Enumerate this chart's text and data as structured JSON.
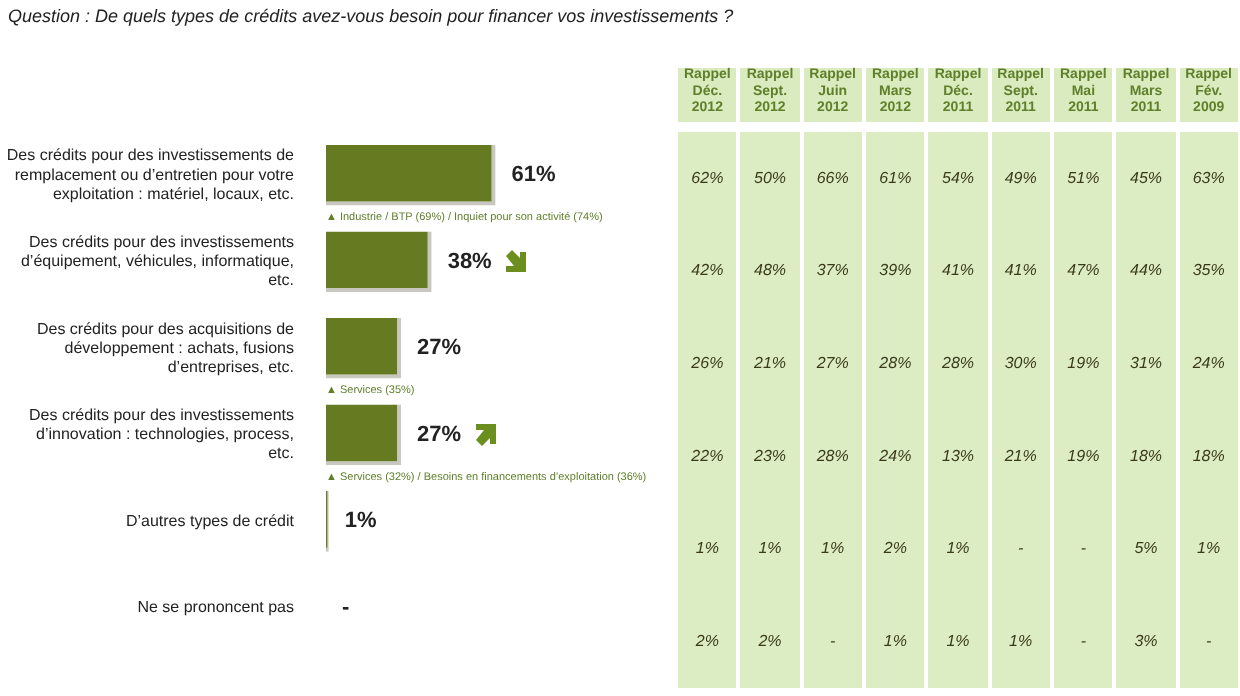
{
  "chart_data": [
    {
      "type": "bar",
      "orientation": "horizontal",
      "title": "Question : De quels types de crédits avez-vous besoin pour financer vos investissements ?",
      "categories": [
        "Des crédits pour des investissements de remplacement ou d’entretien pour votre exploitation : matériel, locaux, etc.",
        "Des crédits pour des investissements d’équipement, véhicules, informatique, etc.",
        "Des crédits pour des acquisitions de développement : achats, fusions d’entreprises, etc.",
        "Des crédits pour des investissements d’innovation : technologies, process, etc.",
        "D’autres types de crédit",
        "Ne se prononcent pas"
      ],
      "series": [
        {
          "type": "bar",
          "color": "#667a22",
          "values": [
            61,
            38,
            27,
            27,
            1,
            null
          ],
          "value_labels": [
            "61%",
            "38%",
            "27%",
            "27%",
            "1%",
            "-"
          ]
        }
      ],
      "annotations": [
        "▲ Industrie / BTP (69%) / Inquiet pour son activité (74%)",
        "▲ Services (35%)",
        "▲ Services (32%) / Besoins en financements d’exploitation (36%)"
      ],
      "grid": false,
      "legend": false
    },
    {
      "type": "heatmap",
      "categories": [
        "Rappel Déc. 2012",
        "Rappel Sept. 2012",
        "Rappel Juin 2012",
        "Rappel Mars 2012",
        "Rappel Déc. 2011",
        "Rappel Sept. 2011",
        "Rappel Mai 2011",
        "Rappel Mars 2011",
        "Rappel Fév. 2009"
      ],
      "y_categories": [
        null,
        null,
        null,
        null,
        null,
        null
      ],
      "cells": [
        [
          62,
          50,
          66,
          61,
          54,
          49,
          51,
          45,
          63
        ],
        [
          42,
          48,
          37,
          39,
          41,
          41,
          47,
          44,
          35
        ],
        [
          26,
          21,
          27,
          28,
          28,
          30,
          19,
          31,
          24
        ],
        [
          22,
          23,
          28,
          24,
          13,
          21,
          19,
          18,
          18
        ],
        [
          1,
          1,
          1,
          2,
          1,
          null,
          null,
          5,
          1
        ],
        [
          2,
          2,
          null,
          1,
          1,
          1,
          null,
          3,
          null
        ]
      ],
      "cell_labels": [
        [
          "62%",
          "50%",
          "66%",
          "61%",
          "54%",
          "49%",
          "51%",
          "45%",
          "63%"
        ],
        [
          "42%",
          "48%",
          "37%",
          "39%",
          "41%",
          "41%",
          "47%",
          "44%",
          "35%"
        ],
        [
          "26%",
          "21%",
          "27%",
          "28%",
          "28%",
          "30%",
          "19%",
          "31%",
          "24%"
        ],
        [
          "22%",
          "23%",
          "28%",
          "24%",
          "13%",
          "21%",
          "19%",
          "18%",
          "18%"
        ],
        [
          "1%",
          "1%",
          "1%",
          "2%",
          "1%",
          "-",
          "-",
          "5%",
          "1%"
        ],
        [
          "2%",
          "2%",
          "-",
          "1%",
          "1%",
          "1%",
          "-",
          "3%",
          "-"
        ]
      ],
      "tick_labels": "x"
    }
  ]
}
